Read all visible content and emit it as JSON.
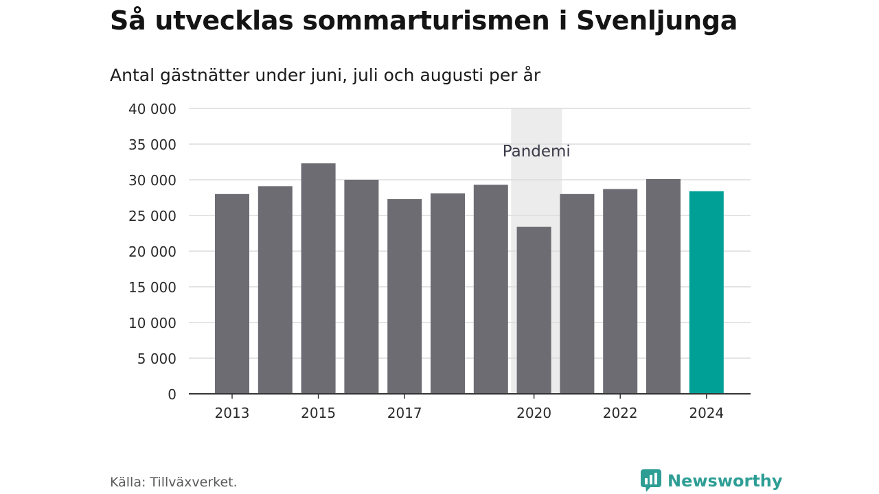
{
  "header": {
    "title": "Så utvecklas sommarturismen i Svenljunga",
    "subtitle": "Antal gästnätter under juni, juli och augusti per år"
  },
  "footer": {
    "source": "Källa: Tillväxverket.",
    "brand": "Newsworthy",
    "brand_icon": "newsworthy-logo-icon"
  },
  "chart_data": {
    "type": "bar",
    "title": "Så utvecklas sommarturismen i Svenljunga",
    "subtitle": "Antal gästnätter under juni, juli och augusti per år",
    "categories": [
      "2013",
      "2014",
      "2015",
      "2016",
      "2017",
      "2018",
      "2019",
      "2020",
      "2021",
      "2022",
      "2023",
      "2024"
    ],
    "values": [
      28000,
      29100,
      32300,
      30000,
      27300,
      28100,
      29300,
      23400,
      28000,
      28700,
      30100,
      28400
    ],
    "x_tick_labels": [
      "2013",
      "2015",
      "2017",
      "2020",
      "2022",
      "2024"
    ],
    "y_ticks": [
      0,
      5000,
      10000,
      15000,
      20000,
      25000,
      30000,
      35000,
      40000
    ],
    "y_tick_labels": [
      "0",
      "5 000",
      "10 000",
      "15 000",
      "20 000",
      "25 000",
      "30 000",
      "35 000",
      "40 000"
    ],
    "ylim": [
      0,
      40000
    ],
    "grid": true,
    "colors": {
      "bar": "#6d6c72",
      "highlight": "#00a096",
      "shade": "#ececec",
      "grid": "#dcdcdc",
      "axis": "#333333"
    },
    "highlight_category": "2024",
    "annotation": {
      "label": "Pandemi",
      "from": "2020",
      "to": "2021"
    }
  }
}
